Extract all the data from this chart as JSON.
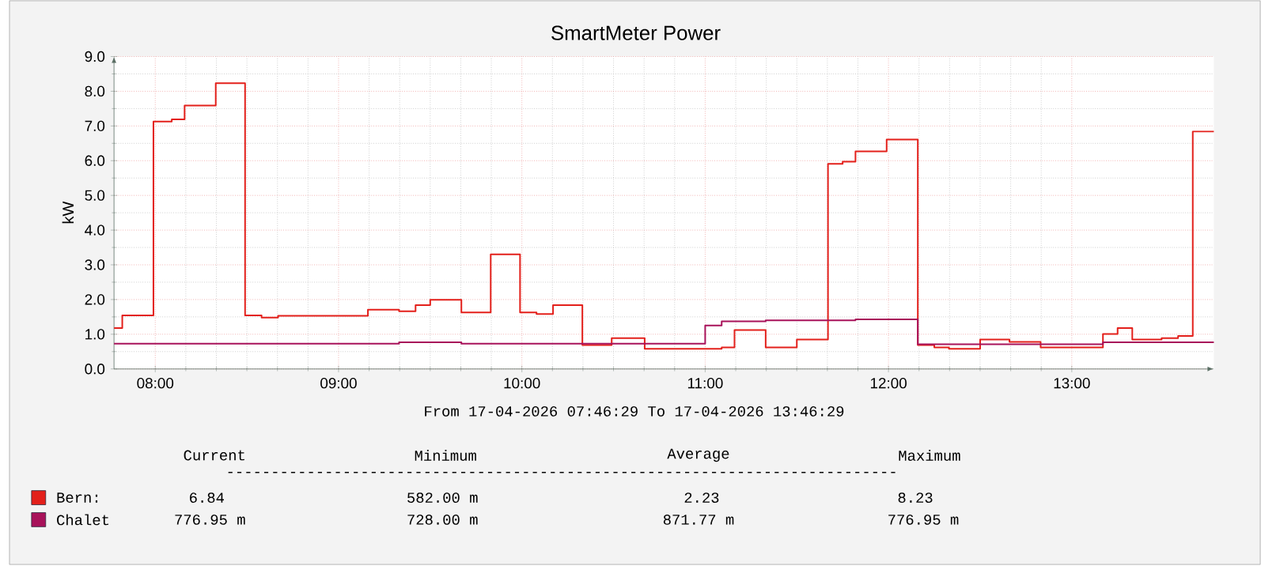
{
  "chart_data": {
    "type": "step",
    "title": "SmartMeter Power",
    "ylabel": "kW",
    "xlim": [
      7.775,
      13.775
    ],
    "ylim": [
      0,
      9
    ],
    "xticks": [
      {
        "value": 8,
        "label": "08:00"
      },
      {
        "value": 9,
        "label": "09:00"
      },
      {
        "value": 10,
        "label": "10:00"
      },
      {
        "value": 11,
        "label": "11:00"
      },
      {
        "value": 12,
        "label": "12:00"
      },
      {
        "value": 13,
        "label": "13:00"
      }
    ],
    "yticks": [
      {
        "value": 0,
        "label": "0.0"
      },
      {
        "value": 1,
        "label": "1.0"
      },
      {
        "value": 2,
        "label": "2.0"
      },
      {
        "value": 3,
        "label": "3.0"
      },
      {
        "value": 4,
        "label": "4.0"
      },
      {
        "value": 5,
        "label": "5.0"
      },
      {
        "value": 6,
        "label": "6.0"
      },
      {
        "value": 7,
        "label": "7.0"
      },
      {
        "value": 8,
        "label": "8.0"
      },
      {
        "value": 9,
        "label": "9.0"
      }
    ],
    "grid": true,
    "legend": "bottom",
    "series": [
      {
        "name": "Bern:",
        "color": "#e3201b",
        "x": [
          7.775,
          7.82,
          7.99,
          8.09,
          8.16,
          8.33,
          8.49,
          8.58,
          8.67,
          9.16,
          9.33,
          9.42,
          9.5,
          9.67,
          9.83,
          9.99,
          10.08,
          10.17,
          10.33,
          10.49,
          10.67,
          11.09,
          11.16,
          11.33,
          11.5,
          11.67,
          11.75,
          11.82,
          11.99,
          12.16,
          12.25,
          12.33,
          12.5,
          12.66,
          12.83,
          13.17,
          13.25,
          13.33,
          13.49,
          13.58,
          13.66,
          13.775
        ],
        "values": [
          1.18,
          1.54,
          7.13,
          7.19,
          7.59,
          8.23,
          1.54,
          1.48,
          1.53,
          1.71,
          1.66,
          1.84,
          1.99,
          1.63,
          3.3,
          1.63,
          1.58,
          1.84,
          0.69,
          0.89,
          0.58,
          0.62,
          1.12,
          0.62,
          0.85,
          5.91,
          5.97,
          6.27,
          6.61,
          0.69,
          0.62,
          0.58,
          0.85,
          0.78,
          0.62,
          1.01,
          1.18,
          0.85,
          0.89,
          0.95,
          6.84,
          6.84
        ]
      },
      {
        "name": "Chalet",
        "color": "#a8125a",
        "x": [
          7.775,
          9.33,
          9.67,
          11.0,
          11.09,
          11.33,
          11.82,
          12.16,
          13.17,
          13.775
        ],
        "values": [
          0.73,
          0.77,
          0.73,
          1.25,
          1.37,
          1.4,
          1.43,
          0.71,
          0.77,
          0.77
        ]
      }
    ],
    "annotations": [
      "From 17-04-2026 07:46:29 To 17-04-2026 13:46:29",
      "Current",
      "Minimum",
      "Average",
      "Maximum",
      "---------------------------------------------------------------------------",
      "6.84",
      "582.00 m",
      "2.23",
      "8.23",
      "776.95 m",
      "728.00 m",
      "871.77 m",
      "776.95 m"
    ]
  }
}
